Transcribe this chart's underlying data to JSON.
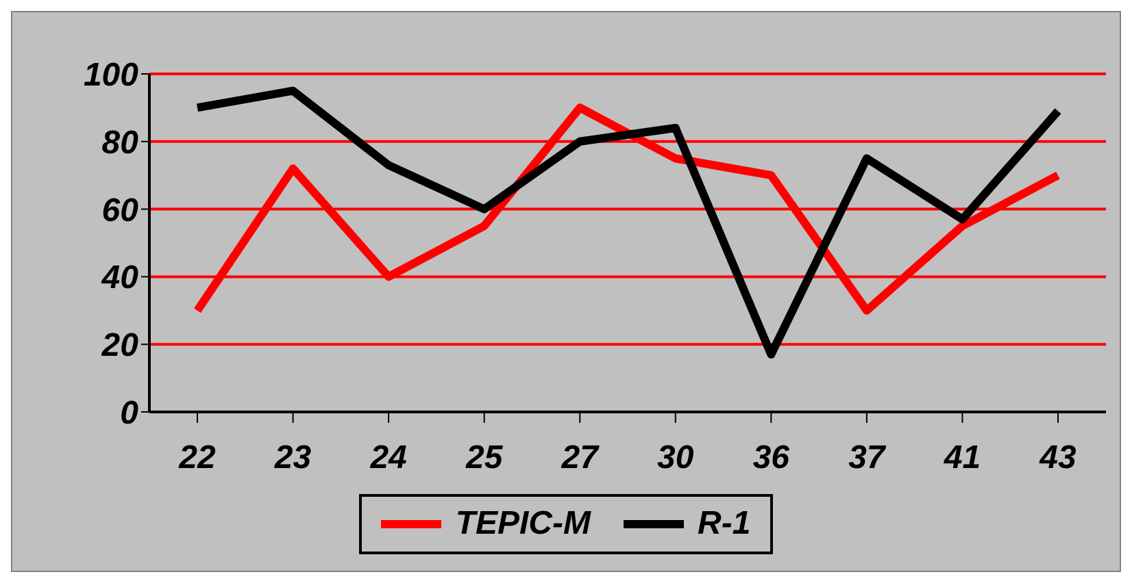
{
  "chart_data": {
    "type": "line",
    "categories": [
      "22",
      "23",
      "24",
      "25",
      "27",
      "30",
      "36",
      "37",
      "41",
      "43"
    ],
    "series": [
      {
        "name": "TEPIC-M",
        "color": "#ff0000",
        "values": [
          30,
          72,
          40,
          55,
          90,
          75,
          70,
          30,
          55,
          70
        ]
      },
      {
        "name": "R-1",
        "color": "#000000",
        "values": [
          90,
          95,
          73,
          60,
          80,
          84,
          17,
          75,
          57,
          89
        ]
      }
    ],
    "ylim": [
      0,
      100
    ],
    "yticks": [
      0,
      20,
      40,
      60,
      80,
      100
    ],
    "grid": "y",
    "legend": "bottom",
    "marker": "none",
    "line_style": "solid"
  }
}
